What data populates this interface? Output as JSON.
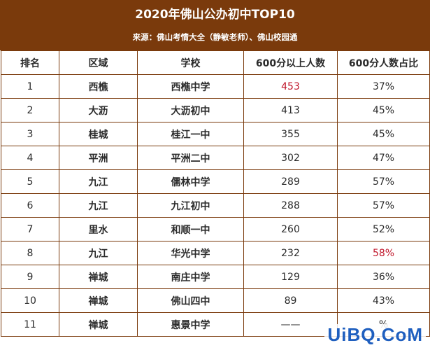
{
  "header": {
    "title": "2020年佛山公办初中TOP10",
    "subtitle": "来源：佛山考情大全（静敏老师）、佛山校园通"
  },
  "table": {
    "columns": [
      "排名",
      "区域",
      "学校",
      "600分以上人数",
      "600分人数占比"
    ],
    "rows": [
      {
        "rank": "1",
        "district": "西樵",
        "school": "西樵中学",
        "count": "453",
        "ratio": "37%",
        "count_highlight": true,
        "ratio_highlight": false
      },
      {
        "rank": "2",
        "district": "大沥",
        "school": "大沥初中",
        "count": "413",
        "ratio": "45%",
        "count_highlight": false,
        "ratio_highlight": false
      },
      {
        "rank": "3",
        "district": "桂城",
        "school": "桂江一中",
        "count": "355",
        "ratio": "45%",
        "count_highlight": false,
        "ratio_highlight": false
      },
      {
        "rank": "4",
        "district": "平洲",
        "school": "平洲二中",
        "count": "302",
        "ratio": "47%",
        "count_highlight": false,
        "ratio_highlight": false
      },
      {
        "rank": "5",
        "district": "九江",
        "school": "儒林中学",
        "count": "289",
        "ratio": "57%",
        "count_highlight": false,
        "ratio_highlight": false
      },
      {
        "rank": "6",
        "district": "九江",
        "school": "九江初中",
        "count": "288",
        "ratio": "57%",
        "count_highlight": false,
        "ratio_highlight": false
      },
      {
        "rank": "7",
        "district": "里水",
        "school": "和顺一中",
        "count": "260",
        "ratio": "52%",
        "count_highlight": false,
        "ratio_highlight": false
      },
      {
        "rank": "8",
        "district": "九江",
        "school": "华光中学",
        "count": "232",
        "ratio": "58%",
        "count_highlight": false,
        "ratio_highlight": true
      },
      {
        "rank": "9",
        "district": "禅城",
        "school": "南庄中学",
        "count": "129",
        "ratio": "36%",
        "count_highlight": false,
        "ratio_highlight": false
      },
      {
        "rank": "10",
        "district": "禅城",
        "school": "佛山四中",
        "count": "89",
        "ratio": "43%",
        "count_highlight": false,
        "ratio_highlight": false
      },
      {
        "rank": "11",
        "district": "禅城",
        "school": "惠景中学",
        "count": "——",
        "ratio": "%",
        "count_highlight": false,
        "ratio_highlight": false
      }
    ]
  },
  "watermark": "UiBQ.CoM",
  "colors": {
    "header_bg": "#7a3a0c",
    "border": "#7a3a0c",
    "highlight": "#c0172b",
    "watermark": "#1f5fbf"
  }
}
